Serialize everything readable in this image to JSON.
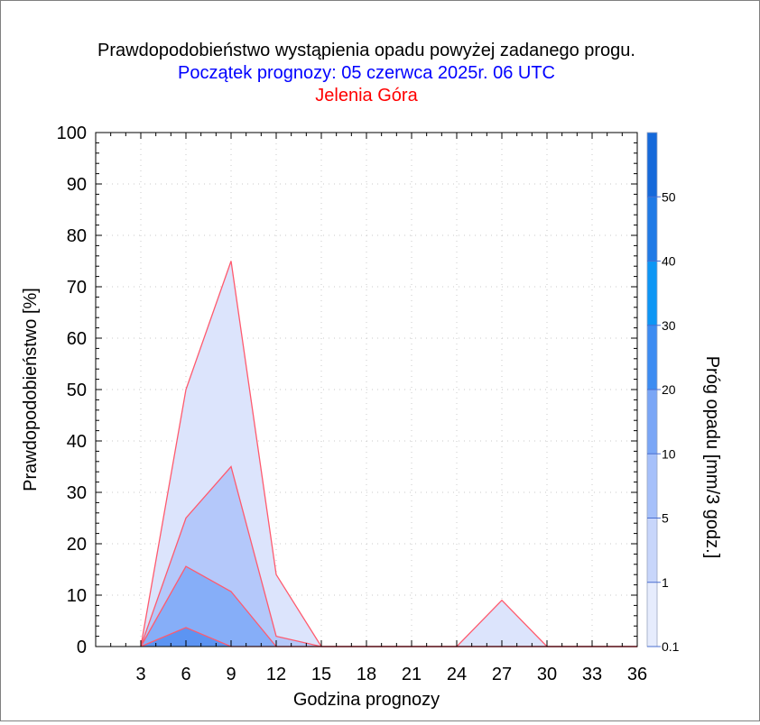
{
  "chart_data": {
    "type": "area",
    "title": "Prawdopodobieństwo wystąpienia opadu powyżej zadanego progu.",
    "subtitle": "Początek prognozy: 05 czerwca 2025r. 06 UTC",
    "location": "Jelenia Góra",
    "xlabel": "Godzina prognozy",
    "ylabel": "Prawdopodobieństwo [%]",
    "colorbar_label": "Próg opadu [mm/3 godz.]",
    "xlim": [
      0,
      36
    ],
    "ylim": [
      0,
      100
    ],
    "x_ticks": [
      3,
      6,
      9,
      12,
      15,
      18,
      21,
      24,
      27,
      30,
      33,
      36
    ],
    "y_ticks": [
      0,
      10,
      20,
      30,
      40,
      50,
      60,
      70,
      80,
      90,
      100
    ],
    "grid": true,
    "x": [
      3,
      6,
      9,
      12,
      15,
      18,
      21,
      24,
      27,
      30,
      33,
      36
    ],
    "series": [
      {
        "threshold": 0.1,
        "color": "#dce4fc",
        "values": [
          0,
          50,
          75,
          14,
          0,
          0,
          0,
          0,
          9,
          0,
          0,
          0
        ]
      },
      {
        "threshold": 1,
        "color": "#b4c8fa",
        "values": [
          0,
          25,
          35,
          2,
          0,
          0,
          0,
          0,
          0,
          0,
          0,
          0
        ]
      },
      {
        "threshold": 5,
        "color": "#86aef8",
        "values": [
          0,
          15.6,
          10.7,
          0,
          0,
          0,
          0,
          0,
          0,
          0,
          0,
          0
        ]
      },
      {
        "threshold": 10,
        "color": "#5c94f2",
        "values": [
          0,
          3.7,
          0,
          0,
          0,
          0,
          0,
          0,
          0,
          0,
          0,
          0
        ]
      }
    ],
    "line_color": "#ff5a6e",
    "colorbar": {
      "labels": [
        "0.1",
        "1",
        "5",
        "10",
        "20",
        "30",
        "40",
        "50"
      ],
      "colors": [
        "#e6ecfd",
        "#c8d6fb",
        "#a6c0fa",
        "#7aa6f6",
        "#3c8cf2",
        "#0d96f5",
        "#1f7ae6",
        "#1569da",
        "#0f55c8",
        "#0a44b2"
      ]
    },
    "colors": {
      "title": "#000000",
      "subtitle": "#0000ff",
      "location": "#ff0000"
    }
  }
}
